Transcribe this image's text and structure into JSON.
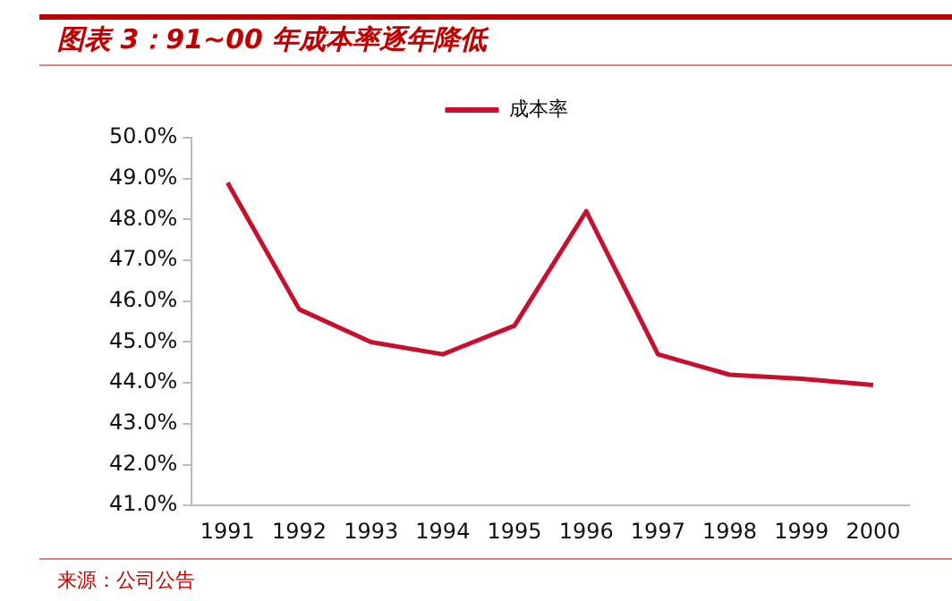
{
  "chart_data": {
    "type": "line",
    "title": "图表 3：91~00 年成本率逐年降低",
    "categories": [
      "1991",
      "1992",
      "1993",
      "1994",
      "1995",
      "1996",
      "1997",
      "1998",
      "1999",
      "2000"
    ],
    "series": [
      {
        "name": "成本率",
        "color": "#c8102e",
        "values": [
          48.9,
          45.8,
          45.0,
          44.7,
          45.4,
          48.2,
          44.7,
          44.2,
          44.1,
          43.95
        ]
      }
    ],
    "ylim": [
      41,
      50
    ],
    "yticks": [
      {
        "value": 41,
        "label": "41.0%"
      },
      {
        "value": 42,
        "label": "42.0%"
      },
      {
        "value": 43,
        "label": "43.0%"
      },
      {
        "value": 44,
        "label": "44.0%"
      },
      {
        "value": 45,
        "label": "45.0%"
      },
      {
        "value": 46,
        "label": "46.0%"
      },
      {
        "value": 47,
        "label": "47.0%"
      },
      {
        "value": 48,
        "label": "48.0%"
      },
      {
        "value": 49,
        "label": "49.0%"
      },
      {
        "value": 50,
        "label": "50.0%"
      }
    ],
    "grid": false,
    "legend": "top",
    "marker": "none",
    "line_style": "solid",
    "annotations": [
      "来源：公司公告"
    ]
  }
}
